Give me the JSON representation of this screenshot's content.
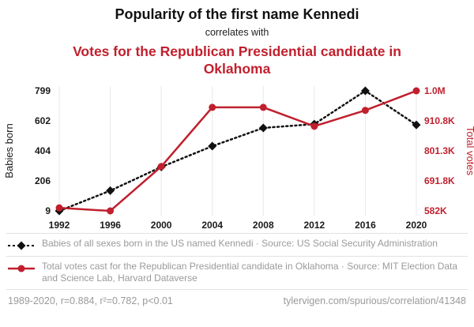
{
  "header": {
    "title": "Popularity of the first name Kennedi",
    "subtitle": "correlates with",
    "title2": "Votes for the Republican Presidential candidate in Oklahoma"
  },
  "chart_data": {
    "type": "line",
    "x": [
      1992,
      1996,
      2000,
      2004,
      2008,
      2012,
      2016,
      2020
    ],
    "x_ticks": [
      "1992",
      "1996",
      "2000",
      "2004",
      "2008",
      "2012",
      "2016",
      "2020"
    ],
    "series": [
      {
        "name": "Babies of all sexes born in the US named Kennedi",
        "axis": "left",
        "color": "#111111",
        "style": "dotted-diamond",
        "values": [
          9,
          142,
          298,
          435,
          555,
          580,
          799,
          575
        ]
      },
      {
        "name": "Total votes cast for the Republican Presidential candidate in Oklahoma",
        "axis": "right",
        "color": "#c0202e",
        "style": "solid-circle",
        "values": [
          593000,
          582000,
          744000,
          960000,
          960000,
          891000,
          949000,
          1020300
        ]
      }
    ],
    "left_axis": {
      "label": "Babies born",
      "min": 9,
      "max": 799,
      "ticks": [
        "9",
        "206",
        "404",
        "602",
        "799"
      ]
    },
    "right_axis": {
      "label": "Total votes",
      "min": 582000,
      "max": 1020300,
      "ticks": [
        "582K",
        "691.8K",
        "801.3K",
        "910.8K",
        "1.0M"
      ]
    },
    "grid": "vertical",
    "legend_position": "bottom"
  },
  "legend": [
    {
      "marker": "black-diamond-dotted-line",
      "text": "Babies of all sexes born in the US named Kennedi · Source: US Social Security Administration"
    },
    {
      "marker": "red-circle-solid-line",
      "text": "Total votes cast for the Republican Presidential candidate in Oklahoma · Source: MIT Election Data and Science Lab, Harvard Dataverse"
    }
  ],
  "footer": {
    "stats": "1989-2020, r=0.884, r²=0.782, p<0.01",
    "url": "tylervigen.com/spurious/correlation/41348"
  },
  "colors": {
    "accent_red": "#c0202e",
    "line_black": "#111111",
    "grid": "#e8e8e8",
    "legend_text": "#9a9a9a"
  }
}
